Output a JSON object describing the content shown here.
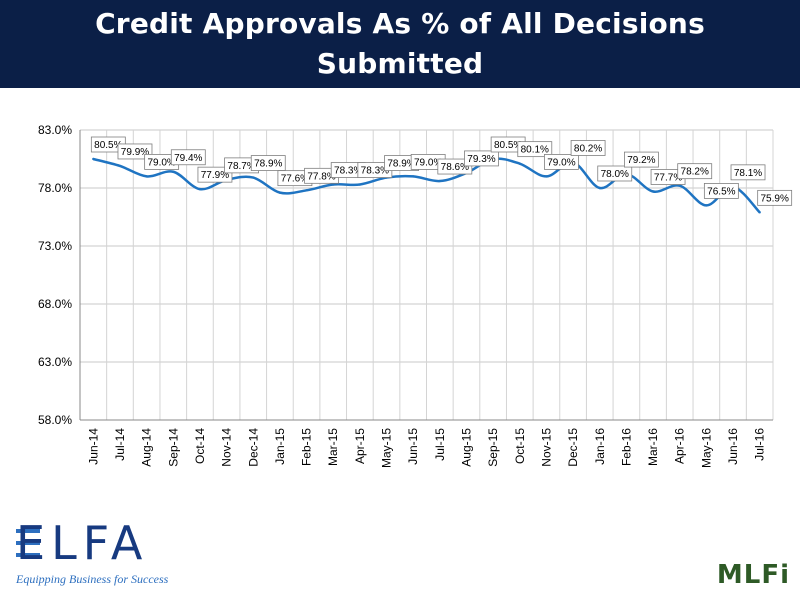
{
  "header": {
    "title_line1": "Credit Approvals As % of All Decisions",
    "title_line2": "Submitted",
    "background": "#0b1f47"
  },
  "chart_data": {
    "type": "line",
    "title": "",
    "xlabel": "",
    "ylabel": "",
    "ylim": [
      58,
      83
    ],
    "y_ticks": [
      "58.0%",
      "63.0%",
      "68.0%",
      "73.0%",
      "78.0%",
      "83.0%"
    ],
    "grid": true,
    "legend": "none",
    "line_color": "#1f74c2",
    "categories": [
      "Jun-14",
      "Jul-14",
      "Aug-14",
      "Sep-14",
      "Oct-14",
      "Nov-14",
      "Dec-14",
      "Jan-15",
      "Feb-15",
      "Mar-15",
      "Apr-15",
      "May-15",
      "Jun-15",
      "Jul-15",
      "Aug-15",
      "Sep-15",
      "Oct-15",
      "Nov-15",
      "Dec-15",
      "Jan-16",
      "Feb-16",
      "Mar-16",
      "Apr-16",
      "May-16",
      "Jun-16",
      "Jul-16"
    ],
    "values": [
      80.5,
      79.9,
      79.0,
      79.4,
      77.9,
      78.7,
      78.9,
      77.6,
      77.8,
      78.3,
      78.3,
      78.9,
      79.0,
      78.6,
      79.3,
      80.5,
      80.1,
      79.0,
      80.2,
      78.0,
      79.2,
      77.7,
      78.2,
      76.5,
      78.1,
      75.9
    ],
    "labels": [
      "80.5%",
      "79.9%",
      "79.0%",
      "79.4%",
      "77.9%",
      "78.7%",
      "78.9%",
      "77.6%",
      "77.8%",
      "78.3%",
      "78.3%",
      "78.9%",
      "79.0%",
      "78.6%",
      "79.3%",
      "80.5%",
      "80.1%",
      "79.0%",
      "80.2%",
      "78.0%",
      "79.2%",
      "77.7%",
      "78.2%",
      "76.5%",
      "78.1%",
      "75.9%"
    ]
  },
  "logos": {
    "elfa_text": "ELFA",
    "elfa_tagline": "Equipping Business for Success",
    "mlfi_text": "MLFi"
  }
}
